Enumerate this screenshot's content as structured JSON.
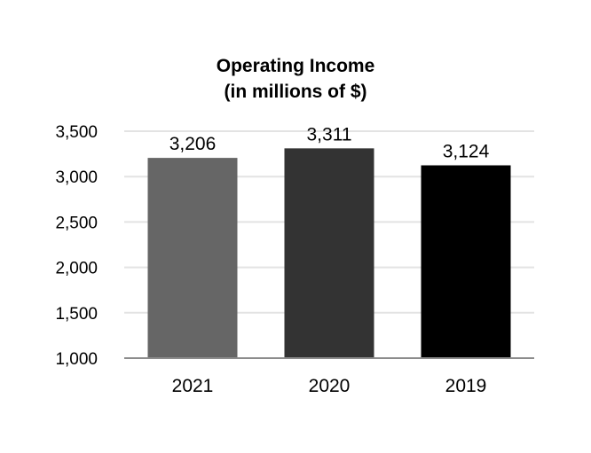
{
  "chart_data": {
    "type": "bar",
    "title": [
      "Operating Income",
      "(in millions of $)"
    ],
    "categories": [
      "2021",
      "2020",
      "2019"
    ],
    "values": [
      3206,
      3311,
      3124
    ],
    "value_labels": [
      "3,206",
      "3,311",
      "3,124"
    ],
    "bar_colors": [
      "#666666",
      "#333333",
      "#000000"
    ],
    "ylim": [
      1000,
      3500
    ],
    "yticks": [
      1000,
      1500,
      2000,
      2500,
      3000,
      3500
    ],
    "ytick_labels": [
      "1,000",
      "1,500",
      "2,000",
      "2,500",
      "3,000",
      "3,500"
    ],
    "xlabel": "",
    "ylabel": "",
    "grid": true,
    "legend": false
  }
}
